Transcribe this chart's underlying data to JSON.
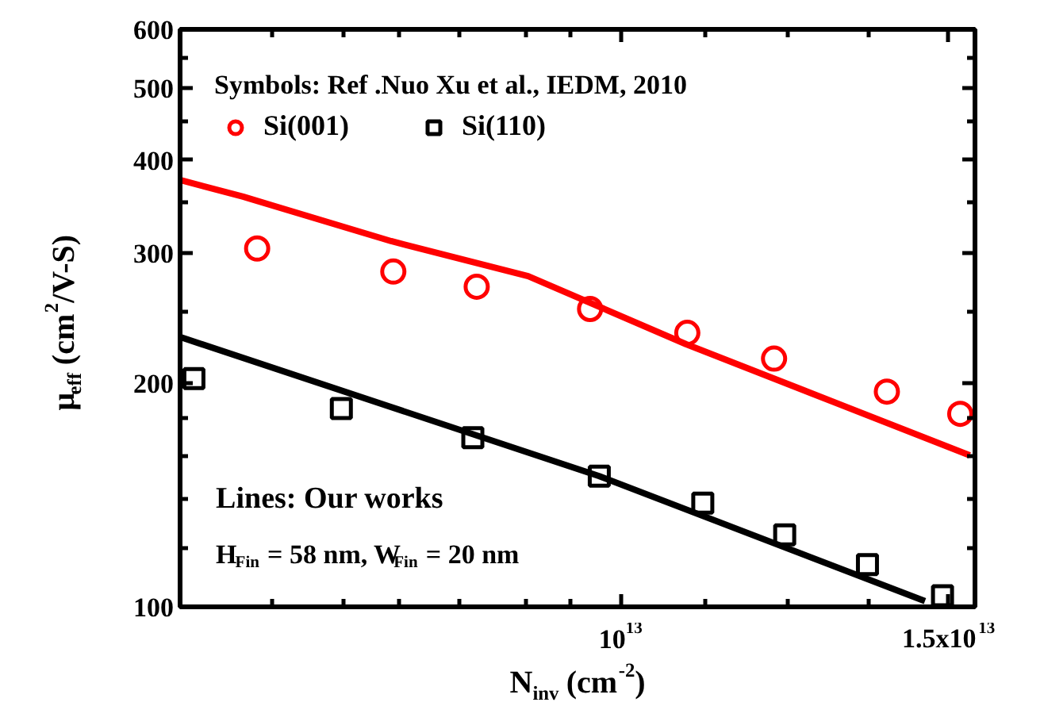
{
  "chart_data": {
    "type": "scatter",
    "xlabel": "N$_{inv}$ (cm$^{-2}$)",
    "ylabel": "μ$_{eff}$ (cm$^{2}$/V-S)",
    "legend_title": "Symbols: Ref .Nuo Xu et al., IEDM, 2010",
    "legend": "top",
    "log": "xy",
    "grid": false,
    "xlim": [
      5800000000000.0,
      15500000000000.0
    ],
    "xticks": [
      {
        "value": 6500000000000.0,
        "label": null
      },
      {
        "value": 7100000000000.0,
        "label": null
      },
      {
        "value": 7600000000000.0,
        "label": null
      },
      {
        "value": 8200000000000.0,
        "label": null
      },
      {
        "value": 8900000000000.0,
        "label": null
      },
      {
        "value": 9400000000000.0,
        "label": null
      },
      {
        "value": 10000000000000.0,
        "label": "10$^{13}$"
      },
      {
        "value": 11100000000000.0,
        "label": null
      },
      {
        "value": 12300000000000.0,
        "label": null
      },
      {
        "value": 13600000000000.0,
        "label": null
      },
      {
        "value": 15000000000000.0,
        "label": "1.5x10$^{13}$"
      }
    ],
    "ylim": [
      100,
      600
    ],
    "yticks": [
      {
        "value": 100,
        "label": "100"
      },
      {
        "value": 120,
        "label": null
      },
      {
        "value": 140,
        "label": null
      },
      {
        "value": 160,
        "label": null
      },
      {
        "value": 180,
        "label": null
      },
      {
        "value": 200,
        "label": "200"
      },
      {
        "value": 250,
        "label": null
      },
      {
        "value": 300,
        "label": "300"
      },
      {
        "value": 350,
        "label": null
      },
      {
        "value": 400,
        "label": "400"
      },
      {
        "value": 450,
        "label": null
      },
      {
        "value": 500,
        "label": "500"
      },
      {
        "value": 550,
        "label": null
      },
      {
        "value": 600,
        "label": "600"
      }
    ],
    "annotations": [
      "Lines: Our works",
      "H$_{Fin}$ = 58 nm, W$_{Fin}$ = 20 nm"
    ],
    "series": [
      {
        "name": "Si(001)",
        "marker": "circle",
        "color": "#ff0000",
        "x": [
          6380000000000.0,
          7550000000000.0,
          8370000000000.0,
          9630000000000.0,
          10860000000000.0,
          12090000000000.0,
          13900000000000.0,
          15220000000000.0
        ],
        "values": [
          304,
          283,
          270,
          252,
          234,
          216,
          195,
          182
        ]
      },
      {
        "name": "Si(110)",
        "marker": "square",
        "color": "#000000",
        "x": [
          5900000000000.0,
          7080000000000.0,
          8330000000000.0,
          9740000000000.0,
          11070000000000.0,
          12250000000000.0,
          13570000000000.0,
          14890000000000.0
        ],
        "values": [
          203,
          185,
          169,
          150,
          138,
          125,
          114,
          103.5
        ]
      },
      {
        "type": "line",
        "line_style": "solid",
        "color": "#ff0000",
        "x": [
          5800000000000.0,
          6270000000000.0,
          7530000000000.0,
          8920000000000.0,
          10840000000000.0,
          15400000000000.0
        ],
        "values": [
          376,
          357,
          311,
          279,
          226,
          160
        ]
      },
      {
        "type": "line",
        "line_style": "solid",
        "color": "#000000",
        "x": [
          5800000000000.0,
          9740000000000.0,
          14570000000000.0
        ],
        "values": [
          231,
          150,
          101.8
        ]
      }
    ]
  }
}
